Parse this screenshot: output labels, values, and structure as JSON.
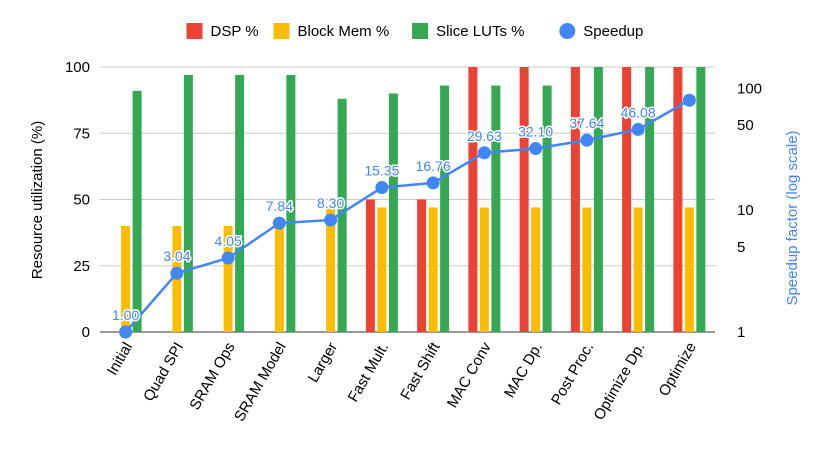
{
  "chart_data": {
    "type": "bar",
    "title": "",
    "ylabel": "Resource utilization (%)",
    "y2label": "Speedup factor (log scale)",
    "ylim": [
      0,
      100
    ],
    "yticks": [
      0,
      25,
      50,
      75,
      100
    ],
    "y2lim": [
      1,
      150
    ],
    "y2scale": "log",
    "y2ticks": [
      1,
      5,
      10,
      50,
      100
    ],
    "legend_position": "top",
    "categories": [
      "Initial",
      "Quad SPI",
      "SRAM Ops",
      "SRAM Model",
      "Larger",
      "Fast Mult.",
      "Fast Shift",
      "MAC Conv",
      "MAC Dp.",
      "Post Proc.",
      "Optimize Dp.",
      "Optimize"
    ],
    "series": [
      {
        "name": "DSP %",
        "kind": "bar",
        "color": "#ea4335",
        "values": [
          0,
          0,
          0,
          0,
          0,
          50,
          50,
          100,
          100,
          100,
          100,
          100
        ]
      },
      {
        "name": "Block Mem %",
        "kind": "bar",
        "color": "#fbbc04",
        "values": [
          40,
          40,
          40,
          40,
          47,
          47,
          47,
          47,
          47,
          47,
          47,
          47
        ]
      },
      {
        "name": "Slice LUTs %",
        "kind": "bar",
        "color": "#34a853",
        "values": [
          91,
          97,
          97,
          97,
          88,
          90,
          93,
          93,
          93,
          100,
          100,
          100
        ]
      },
      {
        "name": "Speedup",
        "kind": "line",
        "axis": "right",
        "color": "#4285f4",
        "values": [
          1.0,
          3.04,
          4.05,
          7.84,
          8.3,
          15.35,
          16.76,
          29.63,
          32.1,
          37.64,
          46.08,
          80.0
        ]
      }
    ],
    "data_labels": [
      "1.00",
      "3.04",
      "4.05",
      "7.84",
      "8.30",
      "15.35",
      "16.76",
      "29.63",
      "32.10",
      "37.64",
      "46.08",
      ""
    ]
  }
}
